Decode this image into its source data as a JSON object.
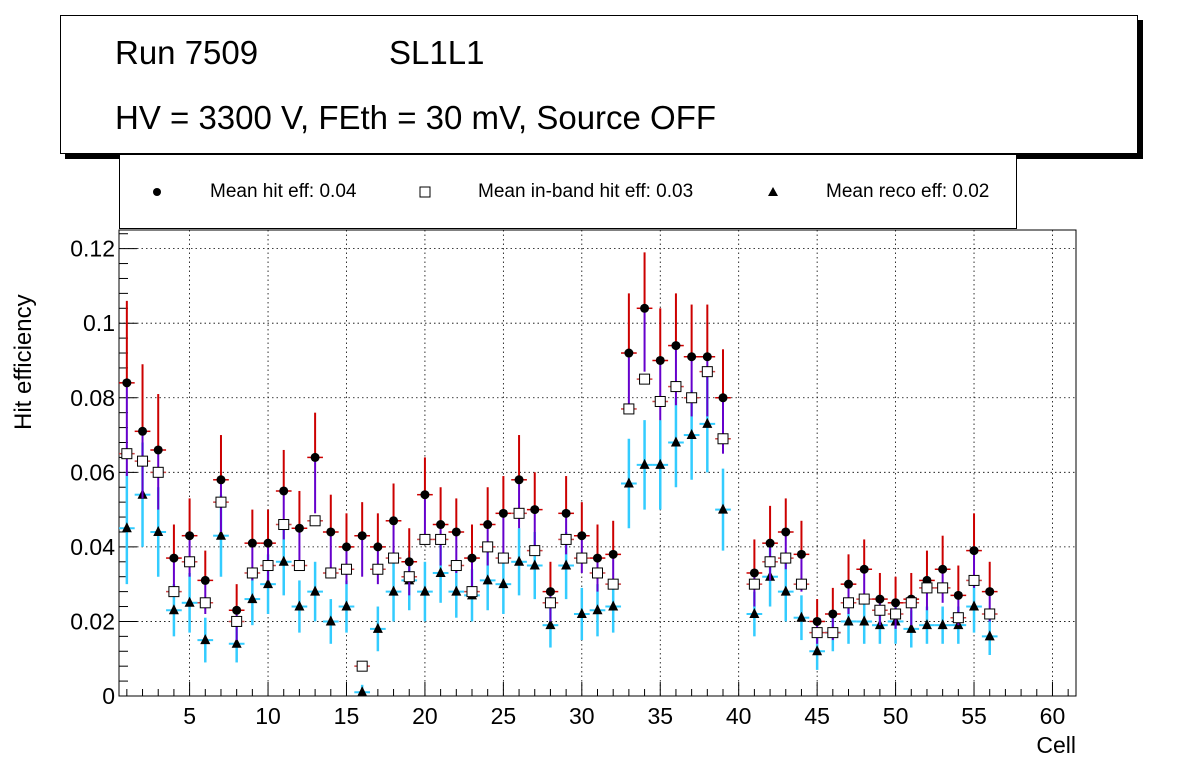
{
  "title": {
    "run": "Run 7509",
    "layer": "SL1L1",
    "conditions": "HV = 3300 V, FEth = 30 mV, Source OFF"
  },
  "legend": {
    "hit": "Mean hit  eff: 0.04",
    "inband": "Mean in-band hit eff: 0.03",
    "reco": "Mean reco eff: 0.02"
  },
  "colors": {
    "hit_err_upper": "#cc0000",
    "hit_err_lower": "#6600cc",
    "inband_err": "#cc4444",
    "reco_err": "#33ccff",
    "grid": "#000000"
  },
  "chart_data": {
    "type": "scatter",
    "xlabel": "Cell",
    "ylabel": "Hit efficiency",
    "xlim": [
      0.5,
      61.5
    ],
    "ylim": [
      0,
      0.125
    ],
    "xticks": [
      5,
      10,
      15,
      20,
      25,
      30,
      35,
      40,
      45,
      50,
      55,
      60
    ],
    "yticks": [
      0,
      0.02,
      0.04,
      0.06,
      0.08,
      0.1,
      0.12
    ],
    "ytick_labels": [
      "0",
      "0.02",
      "0.04",
      "0.06",
      "0.08",
      "0.1",
      "0.12"
    ],
    "grid": true,
    "x": [
      1,
      2,
      3,
      4,
      5,
      6,
      7,
      8,
      9,
      10,
      11,
      12,
      13,
      14,
      15,
      16,
      17,
      18,
      19,
      20,
      21,
      22,
      23,
      24,
      25,
      26,
      27,
      28,
      29,
      30,
      31,
      32,
      33,
      34,
      35,
      36,
      37,
      38,
      39,
      41,
      42,
      43,
      44,
      45,
      46,
      47,
      48,
      49,
      50,
      51,
      52,
      53,
      54,
      55,
      56
    ],
    "series": [
      {
        "name": "hit",
        "values": [
          0.084,
          0.071,
          0.066,
          0.037,
          0.043,
          0.031,
          0.058,
          0.023,
          0.041,
          0.041,
          0.055,
          0.045,
          0.064,
          0.044,
          0.04,
          0.043,
          0.04,
          0.047,
          0.036,
          0.054,
          0.046,
          0.044,
          0.037,
          0.046,
          0.049,
          0.058,
          0.05,
          0.028,
          0.049,
          0.043,
          0.037,
          0.038,
          0.092,
          0.104,
          0.09,
          0.094,
          0.091,
          0.091,
          0.08,
          0.033,
          0.041,
          0.044,
          0.038,
          0.02,
          0.022,
          0.03,
          0.034,
          0.026,
          0.025,
          0.026,
          0.031,
          0.034,
          0.027,
          0.039,
          0.028
        ],
        "err_hi": [
          0.022,
          0.018,
          0.015,
          0.009,
          0.01,
          0.008,
          0.012,
          0.007,
          0.009,
          0.009,
          0.011,
          0.01,
          0.012,
          0.01,
          0.009,
          0.009,
          0.009,
          0.01,
          0.009,
          0.01,
          0.01,
          0.009,
          0.009,
          0.01,
          0.01,
          0.012,
          0.01,
          0.008,
          0.01,
          0.009,
          0.009,
          0.009,
          0.016,
          0.015,
          0.014,
          0.014,
          0.014,
          0.014,
          0.013,
          0.009,
          0.01,
          0.009,
          0.009,
          0.006,
          0.007,
          0.008,
          0.008,
          0.007,
          0.007,
          0.007,
          0.008,
          0.009,
          0.008,
          0.01,
          0.008
        ],
        "err_lo": [
          0.025,
          0.018,
          0.016,
          0.01,
          0.011,
          0.009,
          0.014,
          0.008,
          0.01,
          0.01,
          0.013,
          0.011,
          0.015,
          0.012,
          0.01,
          0.011,
          0.01,
          0.011,
          0.009,
          0.012,
          0.011,
          0.011,
          0.009,
          0.011,
          0.012,
          0.013,
          0.011,
          0.008,
          0.011,
          0.01,
          0.009,
          0.009,
          0.016,
          0.017,
          0.016,
          0.016,
          0.016,
          0.016,
          0.015,
          0.009,
          0.01,
          0.01,
          0.01,
          0.006,
          0.007,
          0.008,
          0.009,
          0.007,
          0.007,
          0.007,
          0.008,
          0.009,
          0.008,
          0.01,
          0.008
        ]
      },
      {
        "name": "inband",
        "values": [
          0.065,
          0.063,
          0.06,
          0.028,
          0.036,
          0.025,
          0.052,
          0.02,
          0.033,
          0.035,
          0.046,
          0.035,
          0.047,
          0.033,
          0.034,
          0.008,
          0.034,
          0.037,
          0.032,
          0.042,
          0.042,
          0.035,
          0.028,
          0.04,
          0.037,
          0.049,
          0.039,
          0.025,
          0.042,
          0.037,
          0.033,
          0.03,
          0.077,
          0.085,
          0.079,
          0.083,
          0.08,
          0.087,
          0.069,
          0.03,
          0.036,
          0.037,
          0.03,
          0.017,
          0.017,
          0.025,
          0.026,
          0.023,
          0.022,
          0.025,
          0.029,
          0.029,
          0.021,
          0.031,
          0.022
        ],
        "err_hi": [
          0.017,
          0.015,
          0.013,
          0.008,
          0.009,
          0.007,
          0.011,
          0.006,
          0.008,
          0.008,
          0.01,
          0.008,
          0.01,
          0.008,
          0.008,
          0.004,
          0.008,
          0.008,
          0.008,
          0.009,
          0.009,
          0.008,
          0.007,
          0.009,
          0.008,
          0.01,
          0.009,
          0.007,
          0.009,
          0.008,
          0.008,
          0.007,
          0.013,
          0.013,
          0.012,
          0.012,
          0.012,
          0.013,
          0.012,
          0.008,
          0.009,
          0.008,
          0.007,
          0.005,
          0.005,
          0.007,
          0.007,
          0.006,
          0.006,
          0.007,
          0.007,
          0.007,
          0.006,
          0.008,
          0.006
        ],
        "err_lo": [
          0.017,
          0.015,
          0.013,
          0.008,
          0.009,
          0.007,
          0.011,
          0.006,
          0.008,
          0.008,
          0.01,
          0.008,
          0.01,
          0.008,
          0.008,
          0.004,
          0.008,
          0.008,
          0.008,
          0.009,
          0.009,
          0.008,
          0.007,
          0.009,
          0.008,
          0.01,
          0.009,
          0.007,
          0.009,
          0.008,
          0.008,
          0.007,
          0.013,
          0.013,
          0.012,
          0.012,
          0.012,
          0.013,
          0.012,
          0.008,
          0.009,
          0.008,
          0.007,
          0.005,
          0.005,
          0.007,
          0.007,
          0.006,
          0.006,
          0.007,
          0.007,
          0.007,
          0.006,
          0.008,
          0.006
        ]
      },
      {
        "name": "reco",
        "values": [
          0.045,
          0.054,
          0.044,
          0.023,
          0.025,
          0.015,
          0.043,
          0.014,
          0.026,
          0.03,
          0.036,
          0.024,
          0.028,
          0.02,
          0.024,
          0.001,
          0.018,
          0.028,
          0.031,
          0.028,
          0.033,
          0.028,
          0.027,
          0.031,
          0.03,
          0.036,
          0.035,
          0.019,
          0.035,
          0.022,
          0.023,
          0.024,
          0.057,
          0.062,
          0.062,
          0.068,
          0.07,
          0.073,
          0.05,
          0.022,
          0.032,
          0.028,
          0.021,
          0.012,
          0.017,
          0.02,
          0.02,
          0.019,
          0.02,
          0.018,
          0.019,
          0.019,
          0.019,
          0.024,
          0.016
        ],
        "err_hi": [
          0.015,
          0.014,
          0.012,
          0.007,
          0.008,
          0.006,
          0.011,
          0.005,
          0.007,
          0.008,
          0.009,
          0.007,
          0.008,
          0.006,
          0.007,
          0.002,
          0.006,
          0.008,
          0.008,
          0.008,
          0.008,
          0.007,
          0.007,
          0.008,
          0.008,
          0.009,
          0.009,
          0.006,
          0.009,
          0.007,
          0.007,
          0.007,
          0.012,
          0.012,
          0.012,
          0.012,
          0.012,
          0.013,
          0.011,
          0.006,
          0.008,
          0.008,
          0.006,
          0.005,
          0.005,
          0.006,
          0.006,
          0.005,
          0.006,
          0.005,
          0.005,
          0.005,
          0.005,
          0.007,
          0.005
        ],
        "err_lo": [
          0.015,
          0.014,
          0.012,
          0.007,
          0.008,
          0.006,
          0.011,
          0.005,
          0.007,
          0.008,
          0.009,
          0.007,
          0.008,
          0.006,
          0.007,
          0.001,
          0.006,
          0.008,
          0.008,
          0.008,
          0.008,
          0.007,
          0.007,
          0.008,
          0.008,
          0.009,
          0.009,
          0.006,
          0.009,
          0.007,
          0.007,
          0.007,
          0.012,
          0.012,
          0.012,
          0.012,
          0.012,
          0.013,
          0.011,
          0.006,
          0.008,
          0.008,
          0.006,
          0.005,
          0.005,
          0.006,
          0.006,
          0.005,
          0.006,
          0.005,
          0.005,
          0.005,
          0.005,
          0.007,
          0.005
        ]
      }
    ]
  }
}
